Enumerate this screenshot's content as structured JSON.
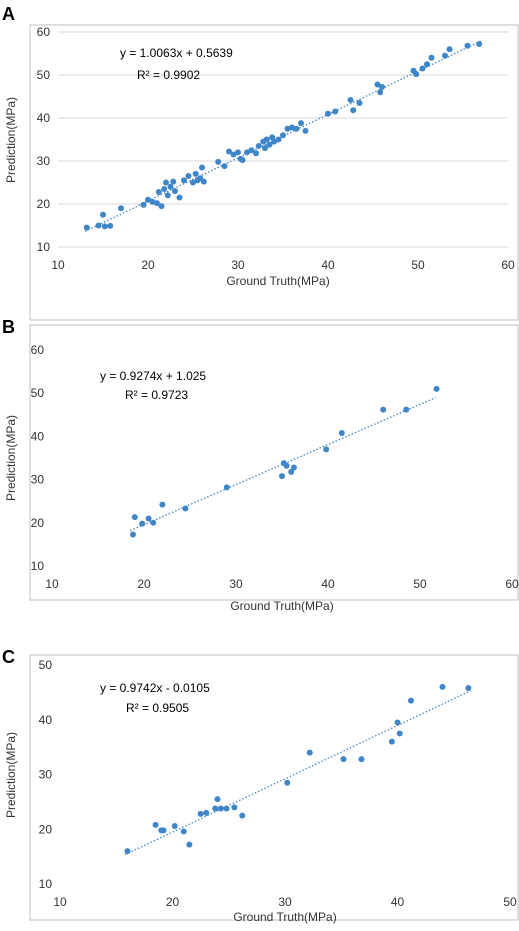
{
  "chart_data": [
    {
      "panel_label": "A",
      "type": "scatter",
      "xlabel": "Ground Truth(MPa)",
      "ylabel": "Prediction(MPa)",
      "xlim": [
        10,
        60
      ],
      "ylim": [
        10,
        60
      ],
      "xticks": [
        10,
        20,
        30,
        40,
        50,
        60
      ],
      "yticks": [
        10,
        20,
        30,
        40,
        50,
        60
      ],
      "grid": "horizontal",
      "equation": "y = 1.0063x + 0.5639",
      "r2": "R² = 0.9902",
      "trendline": {
        "slope": 1.0063,
        "intercept": 0.5639,
        "x": [
          13,
          57
        ]
      },
      "color": "#3f86c9",
      "points": [
        [
          13.2,
          14.5
        ],
        [
          14.5,
          15.0
        ],
        [
          15.0,
          17.5
        ],
        [
          15.2,
          14.8
        ],
        [
          15.8,
          14.9
        ],
        [
          17.0,
          19.0
        ],
        [
          19.5,
          19.8
        ],
        [
          20.0,
          21.0
        ],
        [
          20.5,
          20.5
        ],
        [
          21.0,
          20.2
        ],
        [
          21.2,
          22.8
        ],
        [
          21.5,
          19.5
        ],
        [
          21.8,
          23.5
        ],
        [
          22.0,
          25.0
        ],
        [
          22.2,
          22.0
        ],
        [
          22.5,
          24.0
        ],
        [
          22.8,
          25.2
        ],
        [
          23.0,
          23.0
        ],
        [
          23.5,
          21.5
        ],
        [
          24.0,
          25.5
        ],
        [
          24.5,
          26.5
        ],
        [
          25.0,
          25.0
        ],
        [
          25.3,
          27.0
        ],
        [
          25.5,
          25.5
        ],
        [
          25.8,
          26.0
        ],
        [
          26.0,
          28.5
        ],
        [
          26.2,
          25.2
        ],
        [
          27.8,
          29.8
        ],
        [
          28.5,
          28.8
        ],
        [
          29.0,
          32.2
        ],
        [
          29.5,
          31.5
        ],
        [
          30.0,
          32.0
        ],
        [
          30.3,
          30.5
        ],
        [
          30.5,
          30.2
        ],
        [
          31.0,
          32.0
        ],
        [
          31.5,
          32.5
        ],
        [
          32.0,
          31.8
        ],
        [
          32.3,
          33.5
        ],
        [
          32.8,
          34.5
        ],
        [
          33.0,
          33.0
        ],
        [
          33.2,
          35.0
        ],
        [
          33.5,
          33.8
        ],
        [
          33.8,
          35.5
        ],
        [
          34.0,
          34.5
        ],
        [
          34.5,
          35.0
        ],
        [
          35.0,
          36.0
        ],
        [
          35.5,
          37.5
        ],
        [
          36.0,
          37.8
        ],
        [
          36.5,
          37.5
        ],
        [
          37.0,
          38.8
        ],
        [
          37.5,
          37.0
        ],
        [
          40.0,
          41.0
        ],
        [
          40.8,
          41.5
        ],
        [
          42.5,
          44.2
        ],
        [
          42.8,
          41.8
        ],
        [
          43.5,
          43.5
        ],
        [
          45.5,
          47.8
        ],
        [
          45.8,
          46.0
        ],
        [
          46.0,
          47.2
        ],
        [
          49.5,
          51.0
        ],
        [
          49.8,
          50.2
        ],
        [
          50.5,
          51.5
        ],
        [
          51.0,
          52.5
        ],
        [
          51.5,
          54.0
        ],
        [
          53.0,
          54.5
        ],
        [
          53.5,
          56.0
        ],
        [
          55.5,
          56.8
        ],
        [
          56.8,
          57.2
        ]
      ]
    },
    {
      "panel_label": "B",
      "type": "scatter",
      "xlabel": "Ground Truth(MPa)",
      "ylabel": "Prediction(MPa)",
      "xlim": [
        10,
        60
      ],
      "ylim": [
        10,
        60
      ],
      "xticks": [
        10,
        20,
        30,
        40,
        50,
        60
      ],
      "yticks": [
        10,
        20,
        30,
        40,
        50,
        60
      ],
      "grid": "none",
      "equation": "y = 0.9274x + 1.025",
      "r2": "R² = 0.9723",
      "trendline": {
        "slope": 0.9274,
        "intercept": 1.025,
        "x": [
          18.5,
          51.7
        ]
      },
      "color": "#3f86c9",
      "points": [
        [
          18.8,
          17.3
        ],
        [
          19.0,
          21.3
        ],
        [
          19.8,
          19.8
        ],
        [
          20.5,
          21.0
        ],
        [
          21.0,
          20.0
        ],
        [
          22.0,
          24.2
        ],
        [
          24.5,
          23.3
        ],
        [
          29.0,
          28.2
        ],
        [
          35.0,
          30.8
        ],
        [
          35.2,
          33.8
        ],
        [
          35.5,
          33.2
        ],
        [
          36.0,
          31.8
        ],
        [
          36.3,
          32.8
        ],
        [
          39.8,
          37.0
        ],
        [
          41.5,
          40.8
        ],
        [
          46.0,
          46.2
        ],
        [
          48.5,
          46.2
        ],
        [
          51.8,
          51.0
        ]
      ]
    },
    {
      "panel_label": "C",
      "type": "scatter",
      "xlabel": "Ground Truth(MPa)",
      "ylabel": "Prediction(MPa)",
      "xlim": [
        10,
        50
      ],
      "ylim": [
        10,
        50
      ],
      "xticks": [
        10,
        20,
        30,
        40,
        50
      ],
      "yticks": [
        10,
        20,
        30,
        40,
        50
      ],
      "grid": "none",
      "equation": "y = 0.9742x - 0.0105",
      "r2": "R² = 0.9505",
      "trendline": {
        "slope": 0.9742,
        "intercept": -0.0105,
        "x": [
          15.8,
          46.5
        ]
      },
      "color": "#3f86c9",
      "points": [
        [
          16.0,
          16.0
        ],
        [
          18.5,
          20.8
        ],
        [
          19.0,
          19.8
        ],
        [
          19.2,
          19.8
        ],
        [
          20.2,
          20.6
        ],
        [
          21.0,
          19.6
        ],
        [
          21.5,
          17.2
        ],
        [
          22.5,
          22.8
        ],
        [
          23.0,
          23.0
        ],
        [
          23.8,
          23.8
        ],
        [
          24.0,
          25.5
        ],
        [
          24.3,
          23.8
        ],
        [
          24.8,
          23.8
        ],
        [
          25.5,
          24.0
        ],
        [
          26.2,
          22.5
        ],
        [
          30.2,
          28.5
        ],
        [
          32.2,
          34.0
        ],
        [
          35.2,
          32.8
        ],
        [
          36.8,
          32.8
        ],
        [
          39.5,
          36.0
        ],
        [
          40.0,
          39.5
        ],
        [
          40.2,
          37.5
        ],
        [
          41.2,
          43.5
        ],
        [
          44.0,
          46.0
        ],
        [
          46.3,
          45.8
        ]
      ]
    }
  ]
}
